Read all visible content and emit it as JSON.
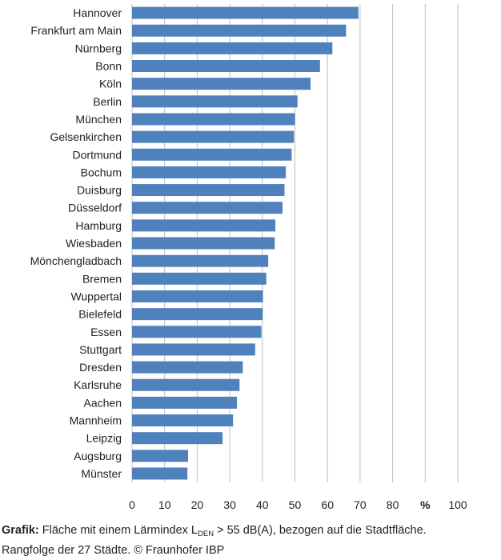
{
  "chart_data": {
    "type": "bar",
    "orientation": "horizontal",
    "categories": [
      "Hannover",
      "Frankfurt am Main",
      "Nürnberg",
      "Bonn",
      "Köln",
      "Berlin",
      "München",
      "Gelsenkirchen",
      "Dortmund",
      "Bochum",
      "Duisburg",
      "Düsseldorf",
      "Hamburg",
      "Wiesbaden",
      "Mönchengladbach",
      "Bremen",
      "Wuppertal",
      "Bielefeld",
      "Essen",
      "Stuttgart",
      "Dresden",
      "Karlsruhe",
      "Aachen",
      "Mannheim",
      "Leipzig",
      "Augsburg",
      "Münster"
    ],
    "values": [
      69.5,
      65.7,
      61.5,
      57.7,
      54.8,
      50.8,
      50.0,
      49.7,
      49.0,
      47.2,
      46.8,
      46.2,
      44.0,
      43.8,
      41.8,
      41.2,
      40.2,
      40.1,
      39.7,
      37.8,
      34.0,
      33.0,
      32.2,
      31.0,
      27.8,
      17.2,
      17.0
    ],
    "xlim": [
      0,
      100
    ],
    "xticks": [
      "0",
      "10",
      "20",
      "30",
      "40",
      "50",
      "60",
      "70",
      "80",
      "%",
      "100"
    ],
    "grid": true,
    "bar_color": "#4f81bd"
  },
  "caption": {
    "prefix": "Grafik:",
    "text_before": " Fläche mit einem Lärmindex L",
    "subscript": "DEN",
    "text_after": " > 55 dB(A), bezogen auf die Stadtfläche.",
    "line2": "Rangfolge der 27 Städte. © Fraunhofer IBP"
  }
}
